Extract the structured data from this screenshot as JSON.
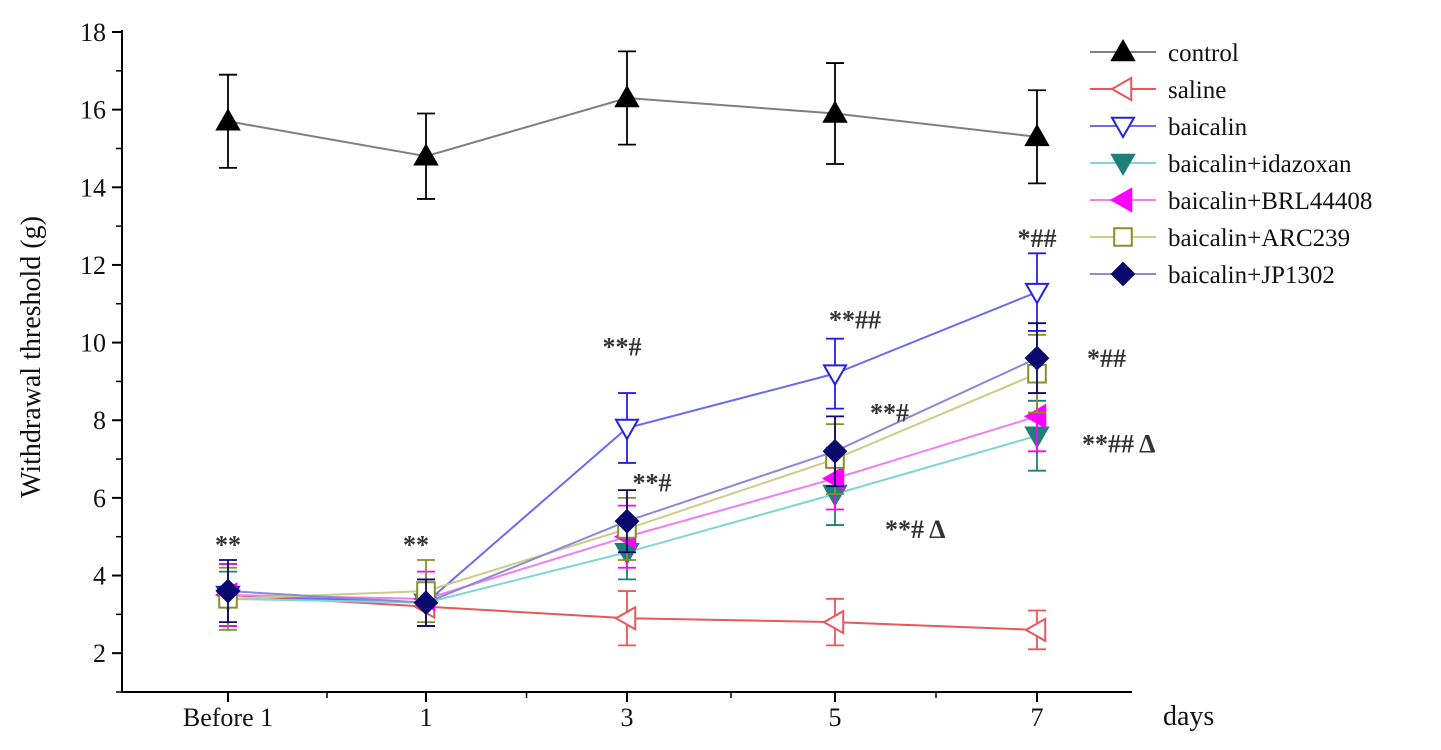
{
  "chart_data": {
    "type": "line",
    "title": "",
    "xlabel": "days",
    "ylabel": "Withdrawal threshold (g)",
    "categories": [
      "Before 1",
      "1",
      "3",
      "5",
      "7"
    ],
    "ylim": [
      1,
      18
    ],
    "yticks": [
      2,
      4,
      6,
      8,
      10,
      12,
      14,
      16,
      18
    ],
    "legend_position": "top-right",
    "grid": false,
    "series": [
      {
        "name": "control",
        "color": "#7f7f7f",
        "marker": "triangle-up",
        "marker_fill": "#000000",
        "marker_stroke": "#000000",
        "values": [
          15.7,
          14.8,
          16.3,
          15.9,
          15.3
        ],
        "errors": [
          1.2,
          1.1,
          1.2,
          1.3,
          1.2
        ]
      },
      {
        "name": "saline",
        "color": "#e8575a",
        "marker": "triangle-left",
        "marker_fill": "#ffffff",
        "marker_stroke": "#e8575a",
        "values": [
          3.5,
          3.2,
          2.9,
          2.8,
          2.6
        ],
        "errors": [
          0.8,
          0.5,
          0.7,
          0.6,
          0.5
        ]
      },
      {
        "name": "baicalin",
        "color": "#6b6bf0",
        "marker": "triangle-down",
        "marker_fill": "#ffffff",
        "marker_stroke": "#2222dd",
        "values": [
          3.5,
          3.3,
          7.8,
          9.2,
          11.3
        ],
        "errors": [
          0.8,
          0.6,
          0.9,
          0.9,
          1.0
        ]
      },
      {
        "name": "baicalin+idazoxan",
        "color": "#7fd6d0",
        "marker": "triangle-down",
        "marker_fill": "#1e7f7a",
        "marker_stroke": "#1e7f7a",
        "values": [
          3.4,
          3.3,
          4.6,
          6.1,
          7.6
        ],
        "errors": [
          0.7,
          0.6,
          0.7,
          0.8,
          0.9
        ]
      },
      {
        "name": "baicalin+BRL44408",
        "color": "#f07ef0",
        "marker": "triangle-left",
        "marker_fill": "#ff00ff",
        "marker_stroke": "#ff00ff",
        "values": [
          3.5,
          3.4,
          5.0,
          6.5,
          8.1
        ],
        "errors": [
          0.8,
          0.7,
          0.8,
          0.8,
          0.9
        ]
      },
      {
        "name": "baicalin+ARC239",
        "color": "#cccc88",
        "marker": "square",
        "marker_fill": "#ffffff",
        "marker_stroke": "#8c8c2a",
        "values": [
          3.4,
          3.6,
          5.2,
          7.0,
          9.2
        ],
        "errors": [
          0.8,
          0.8,
          0.8,
          0.9,
          1.0
        ]
      },
      {
        "name": "baicalin+JP1302",
        "color": "#8a8ad8",
        "marker": "diamond",
        "marker_fill": "#0a0a6e",
        "marker_stroke": "#0a0a6e",
        "values": [
          3.6,
          3.3,
          5.4,
          7.2,
          9.6
        ],
        "errors": [
          0.8,
          0.6,
          0.8,
          0.9,
          0.9
        ]
      }
    ],
    "annotations": [
      {
        "text": "**",
        "x": "Before 1",
        "y": 4.8
      },
      {
        "text": "**",
        "x": "1",
        "y": 4.8
      },
      {
        "text": "**#",
        "x": "3",
        "y": 9.9
      },
      {
        "text": "**#",
        "x": "3",
        "y": 6.4
      },
      {
        "text": "**##",
        "x": "5",
        "y": 10.6
      },
      {
        "text": "**#",
        "x": "5",
        "y": 8.2
      },
      {
        "text": "**# Δ",
        "x": "5",
        "y": 5.2
      },
      {
        "text": "*##",
        "x": "7",
        "y": 12.7
      },
      {
        "text": "*##",
        "x": "7",
        "y": 9.6
      },
      {
        "text": "**## Δ",
        "x": "7",
        "y": 7.4
      }
    ]
  }
}
